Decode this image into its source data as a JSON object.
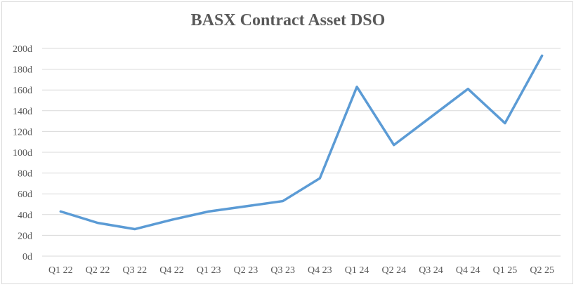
{
  "chart_data": {
    "type": "line",
    "title": "BASX Contract Asset DSO",
    "xlabel": "",
    "ylabel": "",
    "categories": [
      "Q1 22",
      "Q2 22",
      "Q3 22",
      "Q4 22",
      "Q1 23",
      "Q2 23",
      "Q3 23",
      "Q4 23",
      "Q1 24",
      "Q2 24",
      "Q3 24",
      "Q4 24",
      "Q1 25",
      "Q2 25"
    ],
    "series": [
      {
        "values": [
          43,
          32,
          26,
          35,
          43,
          48,
          53,
          75,
          163,
          107,
          134,
          161,
          128,
          193
        ]
      }
    ],
    "ylim": [
      0,
      200
    ],
    "yticks": [
      0,
      20,
      40,
      60,
      80,
      100,
      120,
      140,
      160,
      180,
      200
    ],
    "ytick_suffix": "d",
    "grid": true,
    "legend": "none",
    "colors": {
      "line": "#5b9bd5",
      "grid": "#d9d9d9",
      "text": "#595959"
    }
  }
}
